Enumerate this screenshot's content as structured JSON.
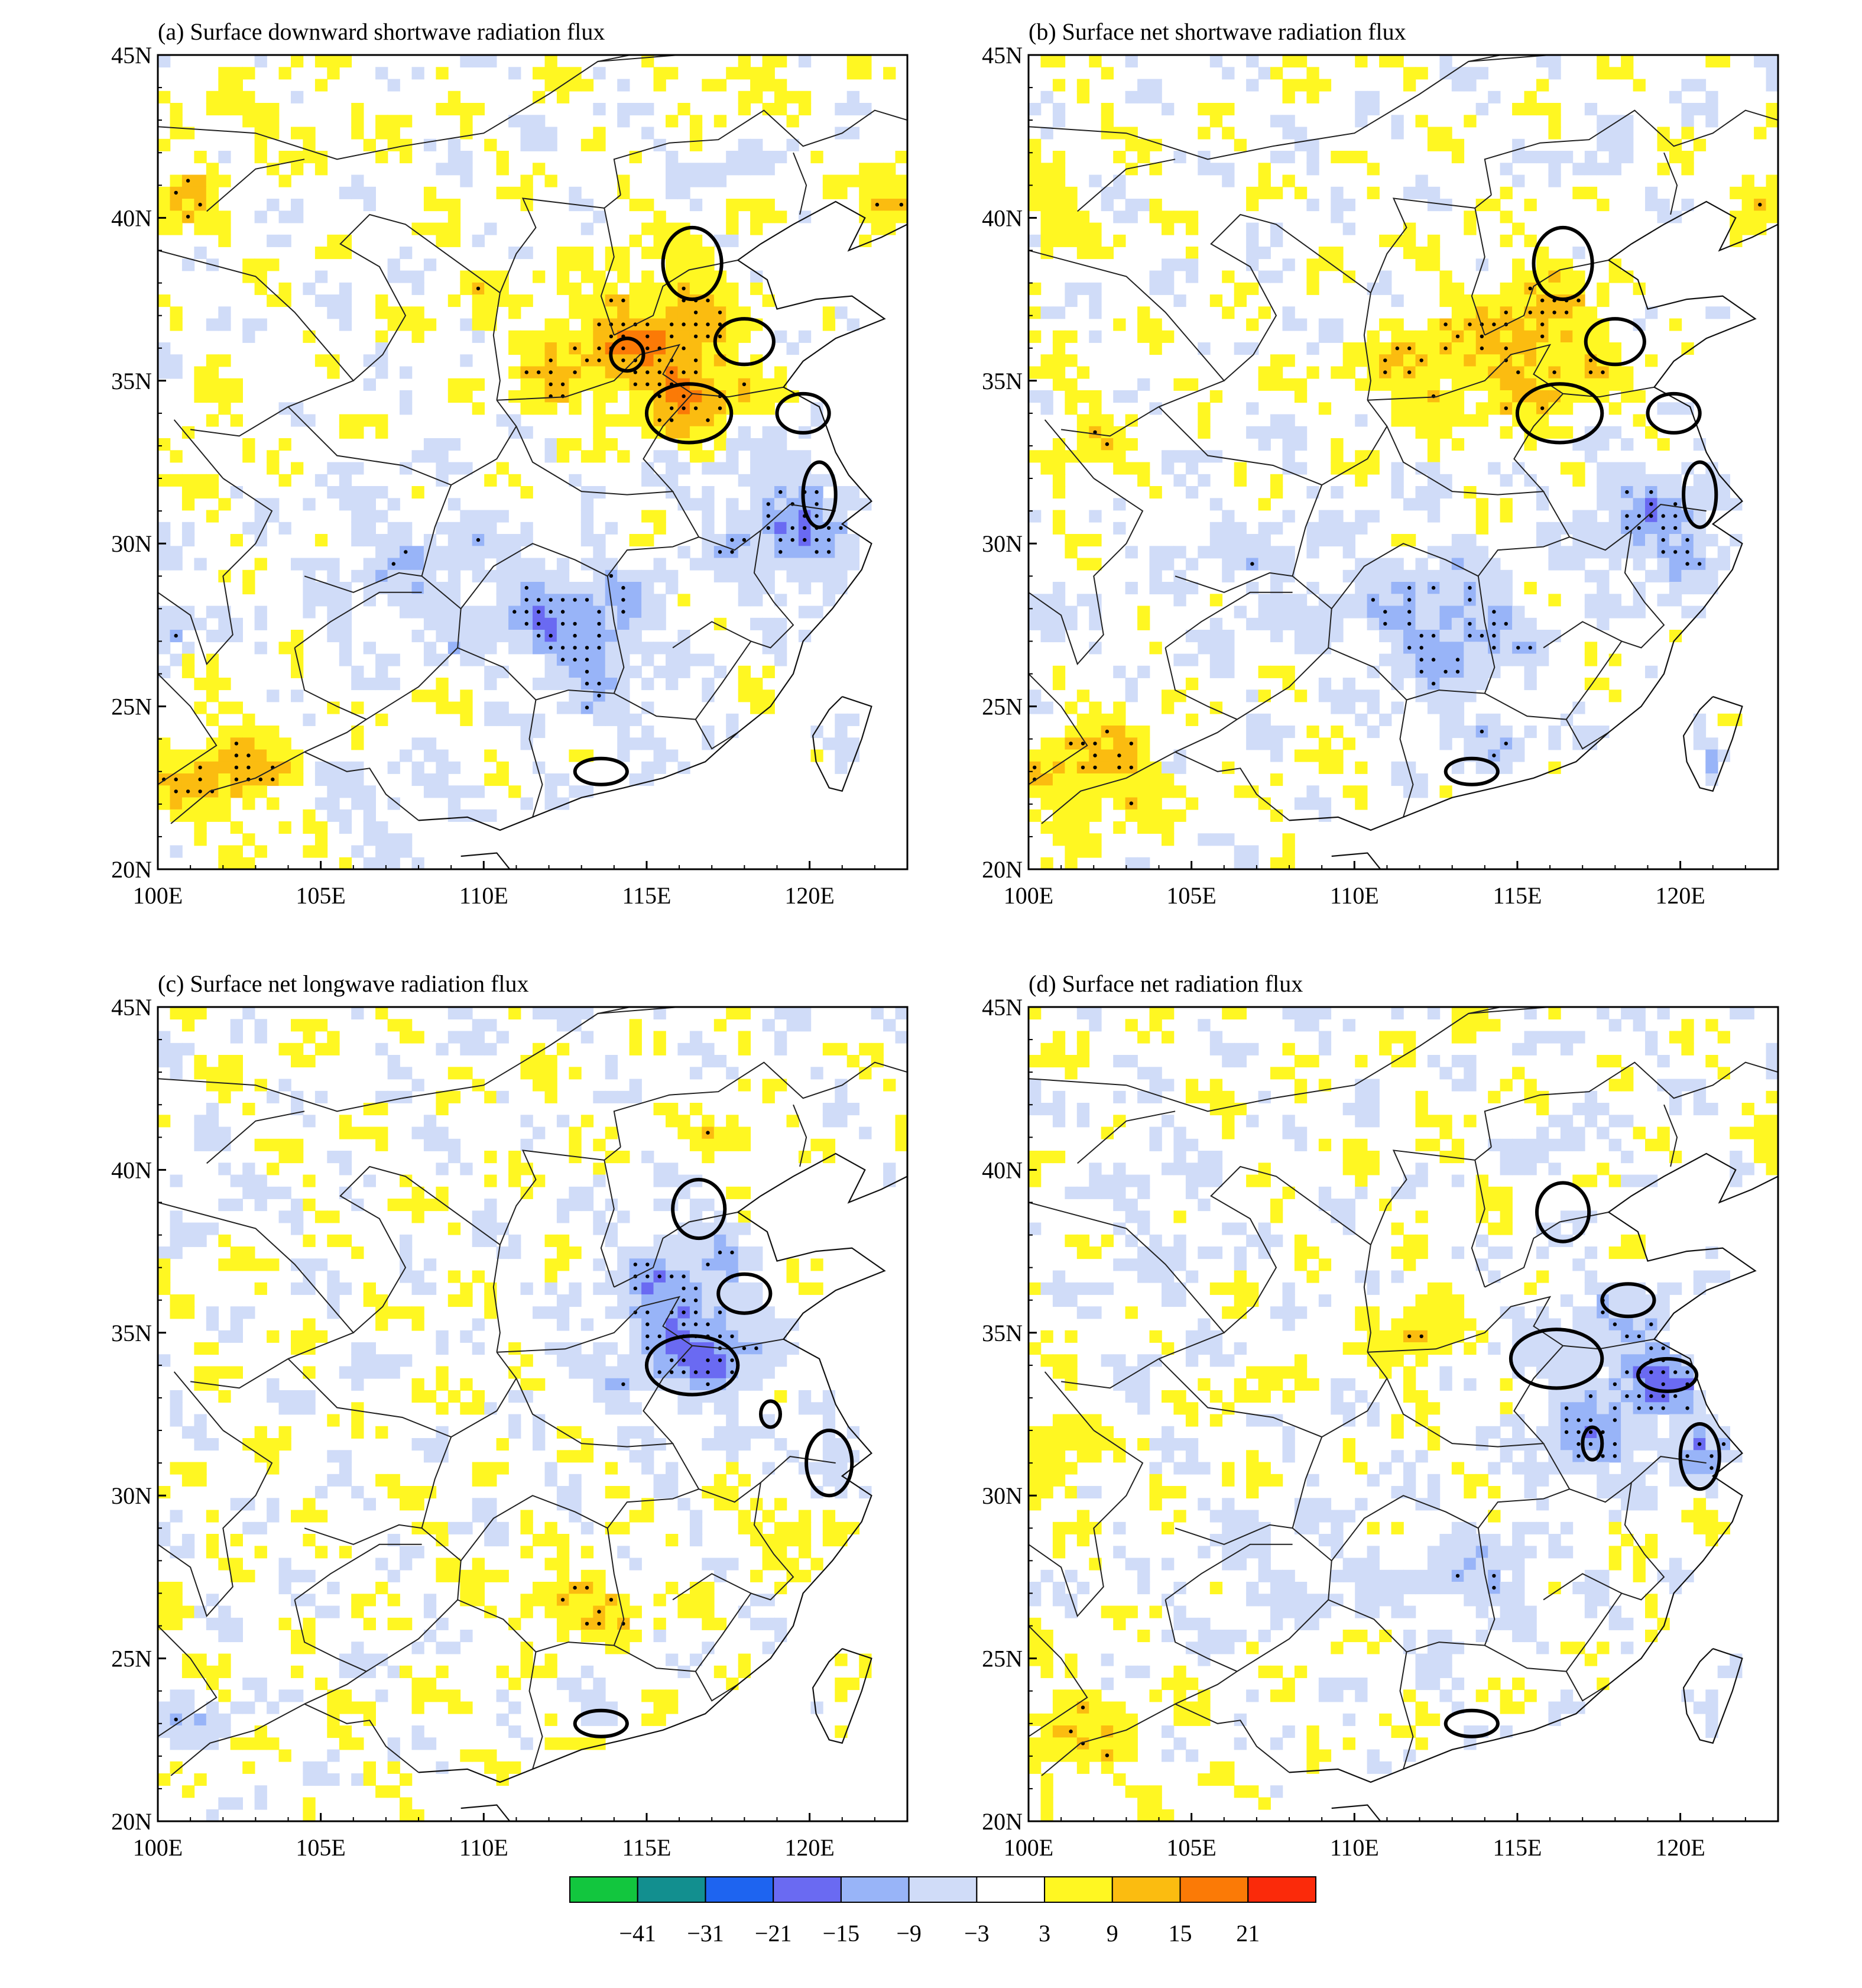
{
  "chart_data": {
    "type": "heatmap",
    "panels": [
      {
        "id": "a",
        "title": "(a) Surface downward shortwave radiation flux",
        "pattern": "sw_down",
        "xticks": [
          "100E",
          "105E",
          "110E",
          "115E",
          "120E"
        ],
        "yticks": [
          "45N",
          "40N",
          "35N",
          "30N",
          "25N",
          "20N"
        ]
      },
      {
        "id": "b",
        "title": "(b) Surface net shortwave radiation flux",
        "pattern": "sw_net",
        "xticks": [
          "100E",
          "105E",
          "110E",
          "115E",
          "120E"
        ],
        "yticks": [
          "45N",
          "40N",
          "35N",
          "30N",
          "25N",
          "20N"
        ]
      },
      {
        "id": "c",
        "title": "(c) Surface net longwave radiation flux",
        "pattern": "lw_net",
        "xticks": [
          "100E",
          "105E",
          "110E",
          "115E",
          "120E"
        ],
        "yticks": [
          "45N",
          "40N",
          "35N",
          "30N",
          "25N",
          "20N"
        ]
      },
      {
        "id": "d",
        "title": "(d) Surface net radiation flux",
        "pattern": "net",
        "xticks": [
          "100E",
          "105E",
          "110E",
          "115E",
          "120E"
        ],
        "yticks": [
          "45N",
          "40N",
          "35N",
          "30N",
          "25N",
          "20N"
        ]
      }
    ],
    "lon_range": [
      100,
      123
    ],
    "lat_range": [
      20,
      45
    ],
    "colorbar": {
      "levels": [
        "−41",
        "−31",
        "−21",
        "−15",
        "−9",
        "−3",
        "3",
        "9",
        "15",
        "21"
      ],
      "colors": [
        "#12c63e",
        "#128f8f",
        "#1e64f0",
        "#6a6af2",
        "#98b4f8",
        "#d0dcf8",
        "#ffffff",
        "#fff722",
        "#fbbc10",
        "#fb7a06",
        "#fb2a0a"
      ]
    }
  }
}
